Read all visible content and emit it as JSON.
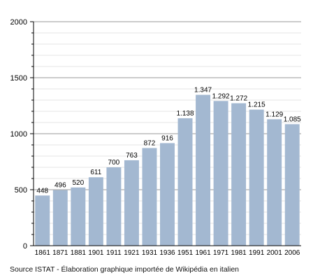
{
  "chart_data": {
    "type": "bar",
    "title": "",
    "xlabel": "",
    "ylabel": "",
    "ylim": [
      0,
      2000
    ],
    "yticks": [
      0,
      500,
      1000,
      1500,
      2000
    ],
    "grid": true,
    "bar_color": "#a3b8d1",
    "grid_color": "#b0b0b0",
    "categories": [
      "1861",
      "1871",
      "1881",
      "1901",
      "1911",
      "1921",
      "1931",
      "1936",
      "1951",
      "1961",
      "1971",
      "1981",
      "1991",
      "2001",
      "2006"
    ],
    "values": [
      448,
      496,
      520,
      611,
      700,
      763,
      872,
      916,
      1138,
      1347,
      1292,
      1272,
      1215,
      1129,
      1085
    ],
    "value_labels": [
      "448",
      "496",
      "520",
      "611",
      "700",
      "763",
      "872",
      "916",
      "1.138",
      "1.347",
      "1.292",
      "1.272",
      "1.215",
      "1.129",
      "1.085"
    ]
  },
  "source_text": "Source ISTAT - Élaboration graphique importée de Wikipédia en italien"
}
